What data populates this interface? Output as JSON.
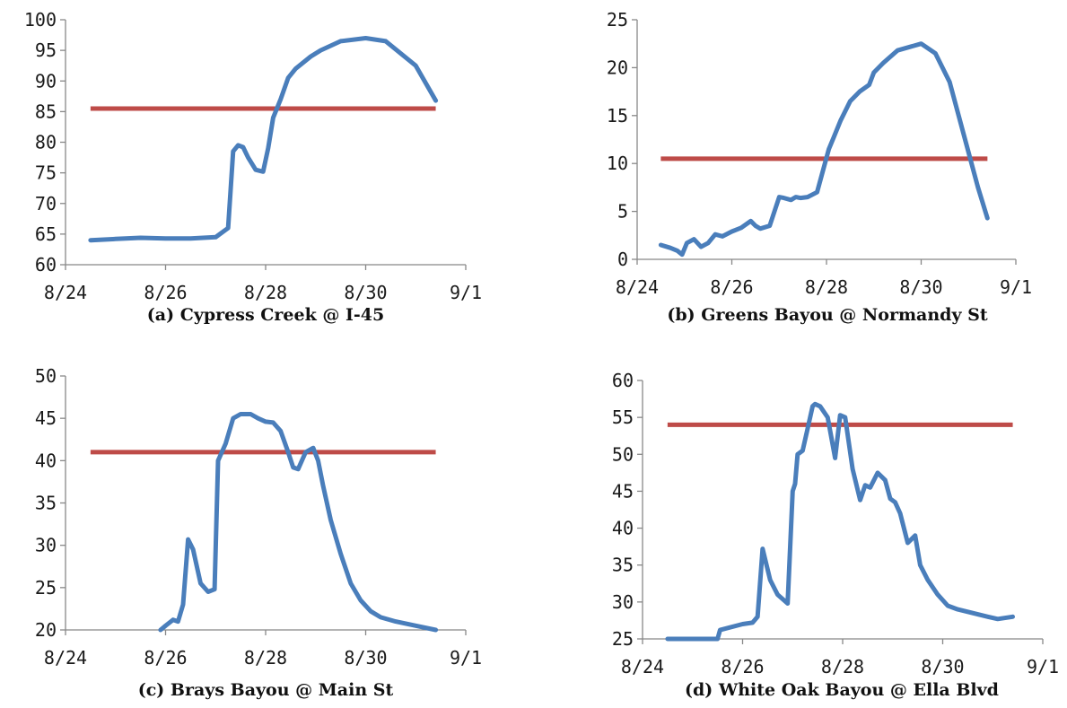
{
  "colors": {
    "series": "#4a7ebb",
    "threshold": "#be4b48",
    "axis": "#888888"
  },
  "chart_data": [
    {
      "type": "line",
      "title": "(a) Cypress Creek @ I-45",
      "x_ticks": [
        "8/24",
        "8/26",
        "8/28",
        "8/30",
        "9/1"
      ],
      "y_ticks": [
        "60",
        "65",
        "70",
        "75",
        "80",
        "85",
        "90",
        "95",
        "100"
      ],
      "xlim": [
        0,
        8
      ],
      "ylim": [
        60,
        100
      ],
      "x_unit": "days after 8/24",
      "threshold": {
        "x": [
          0.5,
          7.4
        ],
        "y": 85.5
      },
      "series": [
        {
          "x": [
            0.5,
            1.0,
            1.5,
            2.0,
            2.5,
            3.0,
            3.25,
            3.35,
            3.45,
            3.55,
            3.65,
            3.8,
            3.95,
            4.05,
            4.15,
            4.3,
            4.45,
            4.6,
            4.9,
            5.1,
            5.5,
            6.0,
            6.4,
            7.0,
            7.4
          ],
          "y": [
            64,
            64.2,
            64.4,
            64.3,
            64.3,
            64.5,
            66,
            78.5,
            79.5,
            79.2,
            77.5,
            75.5,
            75.2,
            79,
            84,
            87,
            90.5,
            92,
            94,
            95,
            96.5,
            97,
            96.5,
            92.5,
            86.8
          ]
        }
      ]
    },
    {
      "type": "line",
      "title": "(b) Greens Bayou @ Normandy St",
      "x_ticks": [
        "8/24",
        "8/26",
        "8/28",
        "8/30",
        "9/1"
      ],
      "y_ticks": [
        "0",
        "5",
        "10",
        "15",
        "20",
        "25"
      ],
      "xlim": [
        0,
        8
      ],
      "ylim": [
        0,
        25
      ],
      "x_unit": "days after 8/24",
      "threshold": {
        "x": [
          0.5,
          7.4
        ],
        "y": 10.5
      },
      "series": [
        {
          "x": [
            0.5,
            0.7,
            0.85,
            0.95,
            1.05,
            1.2,
            1.35,
            1.5,
            1.65,
            1.8,
            2.0,
            2.2,
            2.4,
            2.5,
            2.6,
            2.8,
            3.0,
            3.1,
            3.25,
            3.35,
            3.45,
            3.6,
            3.8,
            4.05,
            4.15,
            4.3,
            4.5,
            4.7,
            4.9,
            5.0,
            5.2,
            5.5,
            6.0,
            6.3,
            6.6,
            6.9,
            7.2,
            7.4
          ],
          "y": [
            1.5,
            1.2,
            0.9,
            0.5,
            1.7,
            2.1,
            1.3,
            1.7,
            2.6,
            2.4,
            2.9,
            3.3,
            4.0,
            3.5,
            3.2,
            3.5,
            6.5,
            6.4,
            6.2,
            6.5,
            6.4,
            6.5,
            7.0,
            11.5,
            12.7,
            14.5,
            16.5,
            17.5,
            18.2,
            19.5,
            20.5,
            21.8,
            22.5,
            21.5,
            18.5,
            13,
            7.5,
            4.3
          ]
        }
      ]
    },
    {
      "type": "line",
      "title": "(c) Brays Bayou @ Main St",
      "x_ticks": [
        "8/24",
        "8/26",
        "8/28",
        "8/30",
        "9/1"
      ],
      "y_ticks": [
        "20",
        "25",
        "30",
        "35",
        "40",
        "45",
        "50"
      ],
      "xlim": [
        0,
        8
      ],
      "ylim": [
        20,
        50
      ],
      "x_unit": "days after 8/24",
      "threshold": {
        "x": [
          0.5,
          7.4
        ],
        "y": 41
      },
      "series": [
        {
          "x": [
            1.9,
            2.0,
            2.15,
            2.25,
            2.35,
            2.45,
            2.55,
            2.7,
            2.85,
            2.98,
            3.05,
            3.2,
            3.35,
            3.5,
            3.7,
            3.85,
            4.0,
            4.15,
            4.3,
            4.45,
            4.55,
            4.65,
            4.8,
            4.95,
            5.05,
            5.15,
            5.3,
            5.5,
            5.7,
            5.9,
            6.1,
            6.3,
            6.6,
            7.0,
            7.4
          ],
          "y": [
            20,
            20.5,
            21.2,
            21,
            23,
            30.7,
            29.5,
            25.5,
            24.5,
            24.8,
            40,
            42,
            45,
            45.5,
            45.5,
            45,
            44.6,
            44.5,
            43.5,
            41,
            39.2,
            39,
            41,
            41.5,
            40,
            37,
            33,
            29,
            25.5,
            23.5,
            22.2,
            21.5,
            21,
            20.5,
            20
          ]
        }
      ]
    },
    {
      "type": "line",
      "title": "(d) White Oak Bayou @ Ella Blvd",
      "x_ticks": [
        "8/24",
        "8/26",
        "8/28",
        "8/30",
        "9/1"
      ],
      "y_ticks": [
        "25",
        "30",
        "35",
        "40",
        "45",
        "50",
        "55",
        "60"
      ],
      "xlim": [
        0,
        8
      ],
      "ylim": [
        25,
        60
      ],
      "x_unit": "days after 8/24",
      "threshold": {
        "x": [
          0.5,
          7.4
        ],
        "y": 54
      },
      "series": [
        {
          "x": [
            0.5,
            1.5,
            1.55,
            2.0,
            2.2,
            2.3,
            2.4,
            2.55,
            2.7,
            2.9,
            3.0,
            3.05,
            3.1,
            3.2,
            3.3,
            3.4,
            3.45,
            3.55,
            3.7,
            3.85,
            3.95,
            4.05,
            4.2,
            4.35,
            4.45,
            4.55,
            4.7,
            4.85,
            4.95,
            5.05,
            5.15,
            5.3,
            5.45,
            5.55,
            5.7,
            5.9,
            6.1,
            6.3,
            6.6,
            6.9,
            7.1,
            7.4
          ],
          "y": [
            25,
            25,
            26.2,
            27,
            27.2,
            28,
            37.2,
            33,
            31,
            29.8,
            45,
            46,
            50,
            50.5,
            53.5,
            56.5,
            56.8,
            56.5,
            55,
            49.5,
            55.3,
            55,
            48,
            43.8,
            45.8,
            45.5,
            47.5,
            46.5,
            44,
            43.5,
            42,
            38,
            39,
            35,
            33,
            31,
            29.5,
            29,
            28.5,
            28,
            27.7,
            28
          ]
        }
      ]
    }
  ]
}
